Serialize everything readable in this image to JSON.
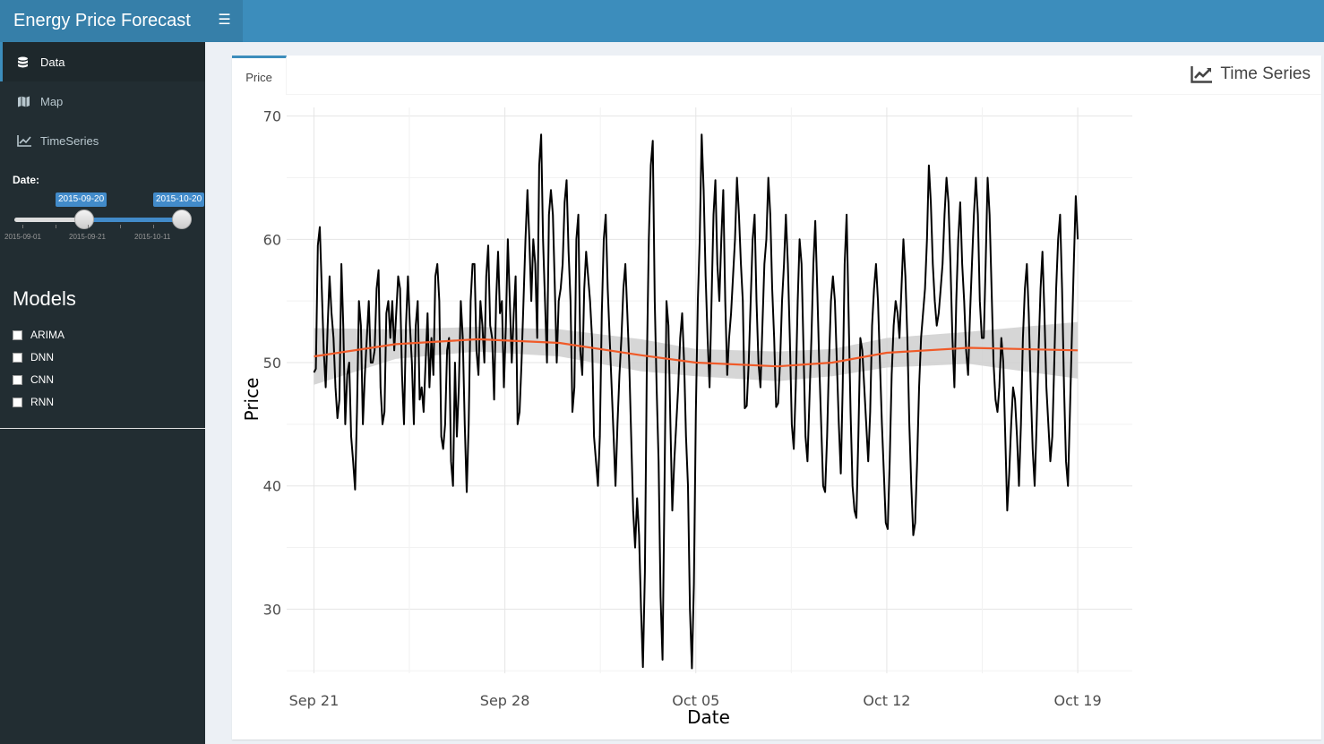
{
  "app": {
    "title": "Energy Price Forecast",
    "toggle_icon": "hamburger-icon"
  },
  "colors": {
    "header": "#3c8dbc",
    "logo": "#367fa9",
    "sidebar": "#222d32",
    "series": "#000000",
    "smooth": "#f05a28",
    "band": "#cccccc"
  },
  "sidebar": {
    "menu": [
      {
        "label": "Data",
        "icon": "database-icon",
        "active": true
      },
      {
        "label": "Map",
        "icon": "map-icon",
        "active": false
      },
      {
        "label": "TimeSeries",
        "icon": "line-chart-icon",
        "active": false
      }
    ],
    "date_label": "Date:",
    "slider": {
      "from": "2015-09-20",
      "to": "2015-10-20",
      "grid_labels": [
        "2015-09-01",
        "2015-09-21",
        "2015-10-11"
      ]
    },
    "models_title": "Models",
    "models": [
      {
        "label": "ARIMA",
        "checked": false
      },
      {
        "label": "DNN",
        "checked": false
      },
      {
        "label": "CNN",
        "checked": false
      },
      {
        "label": "RNN",
        "checked": false
      }
    ]
  },
  "box": {
    "tab": "Price",
    "title": "Time Series",
    "title_icon": "line-chart-icon"
  },
  "chart_data": {
    "type": "line",
    "xlabel": "Date",
    "ylabel": "Price",
    "x_tick_labels": [
      "Sep 21",
      "Sep 28",
      "Oct 05",
      "Oct 12",
      "Oct 19"
    ],
    "x_tick_dates": [
      "2015-09-21",
      "2015-09-28",
      "2015-10-05",
      "2015-10-12",
      "2015-10-19"
    ],
    "x_range": [
      "2015-09-20",
      "2015-10-21"
    ],
    "y_ticks": [
      30,
      40,
      50,
      60,
      70
    ],
    "ylim": [
      24.8,
      70.7
    ],
    "grid": true,
    "series": [
      {
        "x_start": "2015-09-21",
        "x_end": "2015-10-19",
        "values": [
          49.2,
          49.5,
          59.5,
          61,
          56,
          51,
          48,
          53,
          57,
          54,
          52,
          48,
          45.5,
          47,
          58,
          53,
          45,
          49,
          50,
          44,
          42,
          39.7,
          46,
          55,
          53,
          45,
          49,
          52,
          55,
          50,
          50,
          51,
          56,
          57.5,
          48,
          45,
          46,
          54,
          55,
          52,
          55,
          51,
          54,
          57,
          56,
          49,
          45,
          53,
          57,
          53,
          50,
          45,
          53,
          55,
          47,
          48,
          46,
          50,
          54,
          48,
          52,
          49,
          57,
          58,
          55,
          44,
          43,
          45,
          51,
          52,
          42,
          40,
          50,
          44,
          48,
          55,
          52,
          45,
          39.5,
          45,
          55,
          58,
          58,
          51,
          49,
          55,
          53,
          50,
          57,
          59.5,
          53,
          52,
          47,
          55,
          59,
          54,
          55,
          48,
          53,
          60,
          55,
          50,
          54,
          57,
          45,
          46,
          50,
          55,
          60,
          64,
          60,
          55,
          60,
          58,
          52,
          66,
          68.5,
          60,
          55,
          50,
          62,
          64,
          62,
          56,
          50,
          55,
          56,
          58,
          63,
          64.8,
          59,
          55,
          46,
          48,
          60,
          62,
          51,
          49,
          56,
          59,
          57,
          55,
          52,
          44,
          42,
          40,
          44,
          54,
          60,
          62,
          56,
          52,
          48,
          44,
          40,
          45,
          49,
          52,
          56,
          58,
          54,
          50,
          44,
          38,
          35,
          39,
          36,
          30,
          25.3,
          33,
          50,
          60,
          66,
          68,
          55,
          48,
          42,
          31,
          25.9,
          40,
          55,
          53,
          45,
          38,
          42,
          45,
          48,
          52,
          54,
          50,
          44,
          40,
          30,
          25.2,
          32,
          46,
          55,
          60,
          68.5,
          64,
          57,
          52,
          48,
          55,
          62,
          64.8,
          58,
          55,
          60,
          64,
          55,
          49,
          52,
          54,
          57,
          60,
          65,
          62,
          58,
          55,
          46.3,
          46.5,
          50,
          55,
          60,
          62,
          55,
          50,
          48,
          53,
          58,
          60,
          65,
          62,
          56,
          52,
          46.4,
          46.7,
          50,
          55,
          58,
          62,
          58,
          52,
          45,
          43,
          48,
          55,
          60,
          58,
          51,
          44,
          42,
          47,
          52,
          58,
          61.5,
          56,
          50,
          45,
          40,
          39.5,
          44,
          50,
          55,
          57,
          55,
          50,
          45,
          41,
          48,
          58,
          62,
          54,
          46,
          40,
          38,
          37.4,
          44,
          52,
          51,
          48,
          45,
          42,
          46,
          53,
          56,
          58,
          55,
          50,
          45,
          41,
          37,
          36.5,
          42,
          49,
          53,
          55,
          54,
          52,
          56,
          60,
          57,
          52,
          45,
          40,
          36,
          37,
          42,
          48,
          52,
          54,
          56,
          60,
          66,
          63,
          58,
          55,
          53,
          54,
          56,
          58,
          62,
          65,
          63,
          58,
          52,
          48,
          55,
          60,
          63,
          58,
          55,
          51,
          49,
          54,
          58,
          62,
          65,
          62,
          55,
          52,
          52,
          58,
          65,
          62,
          56,
          50,
          47,
          46,
          48,
          52,
          50,
          44,
          38,
          41,
          45,
          48,
          47,
          44,
          40,
          45,
          52,
          56,
          58,
          54,
          48,
          43,
          40,
          45,
          51,
          56,
          59,
          54,
          48,
          45,
          42,
          44,
          50,
          56,
          60,
          62,
          56,
          48,
          42,
          40,
          46,
          52,
          58,
          63.5,
          60
        ]
      }
    ],
    "smooth": {
      "name": "loess",
      "x_dates": [
        "2015-09-21",
        "2015-09-24",
        "2015-09-27",
        "2015-09-30",
        "2015-10-03",
        "2015-10-05",
        "2015-10-08",
        "2015-10-10",
        "2015-10-12",
        "2015-10-15",
        "2015-10-19"
      ],
      "values": [
        50.5,
        51.5,
        51.9,
        51.6,
        50.6,
        50.0,
        49.7,
        50.0,
        50.8,
        51.2,
        51.0
      ],
      "band_lower": [
        48.2,
        50.3,
        50.9,
        50.5,
        49.3,
        48.9,
        48.5,
        48.9,
        49.6,
        49.9,
        48.7
      ],
      "band_upper": [
        52.8,
        52.7,
        52.9,
        52.7,
        51.9,
        51.1,
        50.9,
        51.1,
        52.0,
        52.5,
        53.3
      ]
    }
  }
}
